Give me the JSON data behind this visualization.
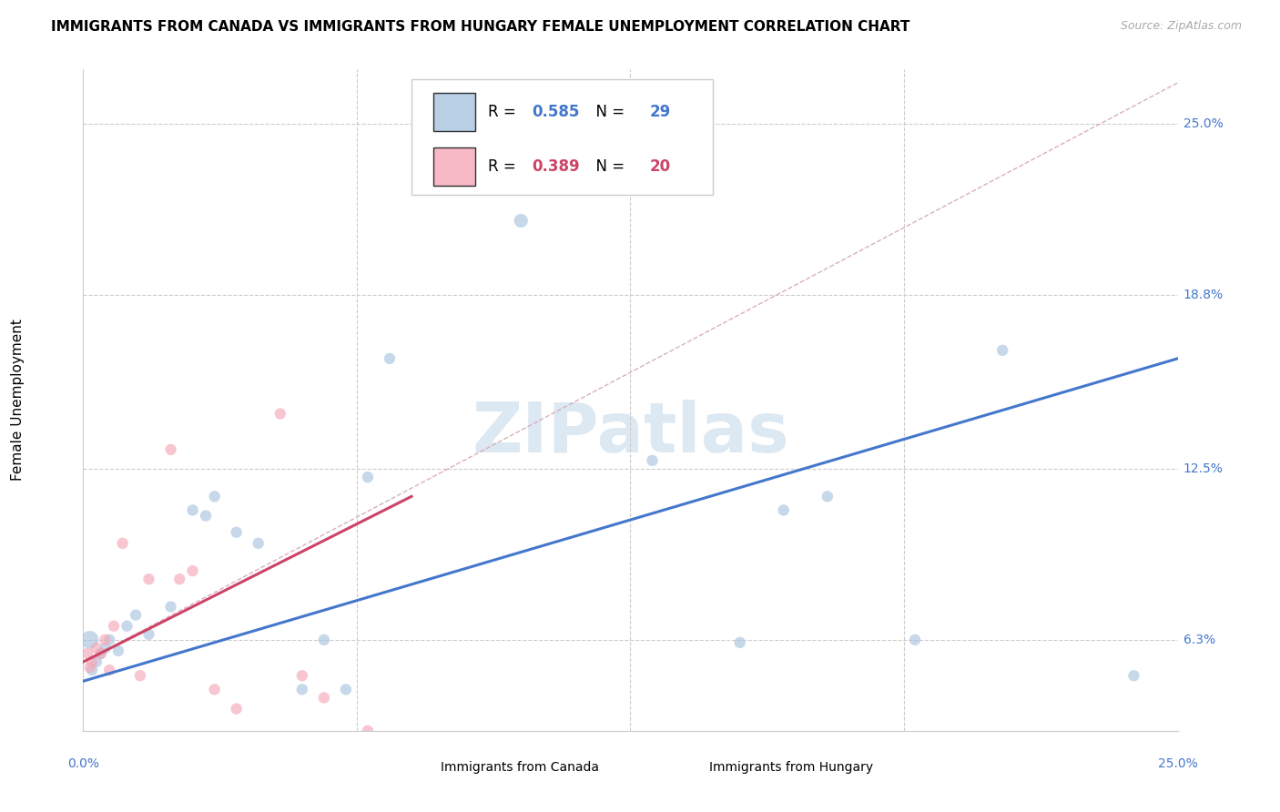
{
  "title": "IMMIGRANTS FROM CANADA VS IMMIGRANTS FROM HUNGARY FEMALE UNEMPLOYMENT CORRELATION CHART",
  "source": "Source: ZipAtlas.com",
  "ylabel": "Female Unemployment",
  "ytick_values": [
    6.3,
    12.5,
    18.8,
    25.0
  ],
  "xlim": [
    0.0,
    25.0
  ],
  "ylim": [
    3.0,
    27.0
  ],
  "watermark": "ZIPatlas",
  "canada_R": 0.585,
  "canada_N": 29,
  "hungary_R": 0.389,
  "hungary_N": 20,
  "canada_color": "#a8c4e0",
  "hungary_color": "#f5a8b8",
  "canada_line_color": "#4477cc",
  "hungary_line_color": "#cc4466",
  "dashed_line_color": "#d4a8b4",
  "canada_points_x": [
    0.15,
    0.2,
    0.3,
    0.4,
    0.5,
    0.6,
    0.8,
    1.0,
    1.2,
    1.5,
    2.0,
    2.5,
    2.8,
    3.0,
    3.5,
    4.0,
    5.0,
    5.5,
    6.0,
    6.5,
    7.0,
    10.0,
    13.0,
    15.0,
    16.0,
    17.0,
    19.0,
    21.0,
    24.0
  ],
  "canada_points_y": [
    6.3,
    5.2,
    5.5,
    5.8,
    6.0,
    6.3,
    5.9,
    6.8,
    7.2,
    6.5,
    7.5,
    11.0,
    10.8,
    11.5,
    10.2,
    9.8,
    4.5,
    6.3,
    4.5,
    12.2,
    16.5,
    21.5,
    12.8,
    6.2,
    11.0,
    11.5,
    6.3,
    16.8,
    5.0
  ],
  "canada_sizes": [
    200,
    80,
    80,
    80,
    80,
    80,
    80,
    80,
    80,
    80,
    80,
    80,
    80,
    80,
    80,
    80,
    80,
    80,
    80,
    80,
    80,
    120,
    80,
    80,
    80,
    80,
    80,
    80,
    80
  ],
  "hungary_points_x": [
    0.1,
    0.15,
    0.2,
    0.3,
    0.4,
    0.5,
    0.6,
    0.7,
    0.9,
    1.3,
    1.5,
    2.0,
    2.2,
    2.5,
    3.0,
    3.5,
    4.5,
    5.0,
    5.5,
    6.5
  ],
  "hungary_points_y": [
    5.8,
    5.3,
    5.5,
    6.0,
    5.8,
    6.3,
    5.2,
    6.8,
    9.8,
    5.0,
    8.5,
    13.2,
    8.5,
    8.8,
    4.5,
    3.8,
    14.5,
    5.0,
    4.2,
    3.0
  ],
  "hungary_sizes": [
    80,
    80,
    80,
    80,
    80,
    80,
    80,
    80,
    80,
    80,
    80,
    80,
    80,
    80,
    80,
    80,
    80,
    80,
    80,
    80
  ],
  "canada_reg_x0": 0.0,
  "canada_reg_y0": 4.8,
  "canada_reg_x1": 25.0,
  "canada_reg_y1": 16.5,
  "hungary_reg_x0": 0.0,
  "hungary_reg_y0": 5.5,
  "hungary_reg_x1": 7.5,
  "hungary_reg_y1": 11.5,
  "diag_x0": 0.0,
  "diag_y0": 5.5,
  "diag_x1": 25.0,
  "diag_y1": 26.5
}
